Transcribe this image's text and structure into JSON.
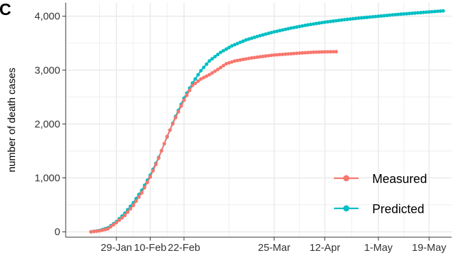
{
  "panel_label": "C",
  "chart_data": {
    "type": "scatter",
    "title": "",
    "xlabel": "",
    "ylabel": "number of death cases",
    "x_axis_type": "date",
    "xlim": [
      "2020-01-11",
      "2020-05-27"
    ],
    "ylim": [
      -100,
      4250
    ],
    "x_ticks": [
      {
        "date": "2020-01-29",
        "label": "29-Jan"
      },
      {
        "date": "2020-02-10",
        "label": "10-Feb"
      },
      {
        "date": "2020-02-22",
        "label": "22-Feb"
      },
      {
        "date": "2020-03-25",
        "label": "25-Mar"
      },
      {
        "date": "2020-04-12",
        "label": "12-Apr"
      },
      {
        "date": "2020-05-01",
        "label": "1-May"
      },
      {
        "date": "2020-05-19",
        "label": "19-May"
      }
    ],
    "y_ticks": [
      {
        "value": 0,
        "label": "0"
      },
      {
        "value": 1000,
        "label": "1,000"
      },
      {
        "value": 2000,
        "label": "2,000"
      },
      {
        "value": 3000,
        "label": "3,000"
      },
      {
        "value": 4000,
        "label": "4,000"
      }
    ],
    "grid": true,
    "legend_position": "bottom-right",
    "series": [
      {
        "name": "Measured",
        "color": "#F8766D",
        "points": [
          [
            "2020-01-20",
            0
          ],
          [
            "2020-01-23",
            17
          ],
          [
            "2020-01-26",
            56
          ],
          [
            "2020-01-29",
            170
          ],
          [
            "2020-02-01",
            304
          ],
          [
            "2020-02-04",
            490
          ],
          [
            "2020-02-07",
            722
          ],
          [
            "2020-02-10",
            1016
          ],
          [
            "2020-02-13",
            1367
          ],
          [
            "2020-02-16",
            1770
          ],
          [
            "2020-02-19",
            2118
          ],
          [
            "2020-02-22",
            2442
          ],
          [
            "2020-02-25",
            2715
          ],
          [
            "2020-02-28",
            2835
          ],
          [
            "2020-03-02",
            2915
          ],
          [
            "2020-03-05",
            3013
          ],
          [
            "2020-03-08",
            3119
          ],
          [
            "2020-03-11",
            3169
          ],
          [
            "2020-03-14",
            3199
          ],
          [
            "2020-03-17",
            3226
          ],
          [
            "2020-03-20",
            3248
          ],
          [
            "2020-03-25",
            3281
          ],
          [
            "2020-03-30",
            3300
          ],
          [
            "2020-04-04",
            3320
          ],
          [
            "2020-04-08",
            3333
          ],
          [
            "2020-04-12",
            3339
          ],
          [
            "2020-04-16",
            3342
          ]
        ]
      },
      {
        "name": "Predicted",
        "color": "#00BFC4",
        "points": [
          [
            "2020-01-20",
            0
          ],
          [
            "2020-01-23",
            25
          ],
          [
            "2020-01-26",
            75
          ],
          [
            "2020-01-29",
            190
          ],
          [
            "2020-02-01",
            345
          ],
          [
            "2020-02-04",
            540
          ],
          [
            "2020-02-07",
            770
          ],
          [
            "2020-02-10",
            1050
          ],
          [
            "2020-02-13",
            1380
          ],
          [
            "2020-02-16",
            1760
          ],
          [
            "2020-02-19",
            2140
          ],
          [
            "2020-02-22",
            2480
          ],
          [
            "2020-02-25",
            2760
          ],
          [
            "2020-02-28",
            2990
          ],
          [
            "2020-03-02",
            3170
          ],
          [
            "2020-03-06",
            3330
          ],
          [
            "2020-03-10",
            3450
          ],
          [
            "2020-03-15",
            3560
          ],
          [
            "2020-03-20",
            3640
          ],
          [
            "2020-03-25",
            3710
          ],
          [
            "2020-03-31",
            3780
          ],
          [
            "2020-04-06",
            3840
          ],
          [
            "2020-04-12",
            3890
          ],
          [
            "2020-04-18",
            3930
          ],
          [
            "2020-04-24",
            3965
          ],
          [
            "2020-05-01",
            4000
          ],
          [
            "2020-05-07",
            4030
          ],
          [
            "2020-05-13",
            4055
          ],
          [
            "2020-05-19",
            4080
          ],
          [
            "2020-05-24",
            4100
          ]
        ]
      }
    ]
  }
}
